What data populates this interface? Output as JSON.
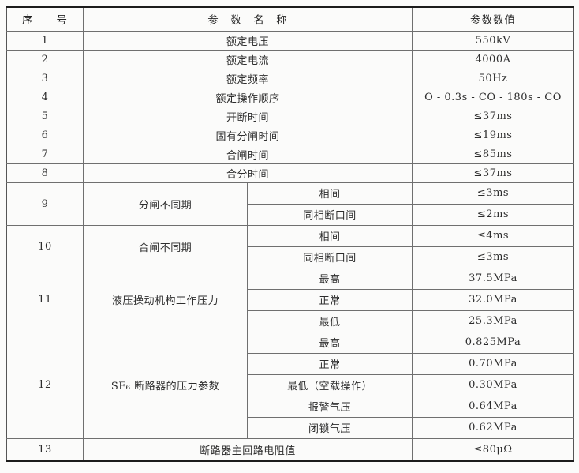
{
  "table": {
    "headers": {
      "no": "序　　号",
      "name": "参　数　名　称",
      "value": "参数数值"
    },
    "rows": [
      {
        "no": "1",
        "name": "额定电压",
        "value": "550kV"
      },
      {
        "no": "2",
        "name": "额定电流",
        "value": "4000A"
      },
      {
        "no": "3",
        "name": "额定频率",
        "value": "50Hz"
      },
      {
        "no": "4",
        "name": "额定操作顺序",
        "value": "O - 0.3s - CO - 180s - CO"
      },
      {
        "no": "5",
        "name": "开断时间",
        "value": "≤37ms"
      },
      {
        "no": "6",
        "name": "固有分闸时间",
        "value": "≤19ms"
      },
      {
        "no": "7",
        "name": "合闸时间",
        "value": "≤85ms"
      },
      {
        "no": "8",
        "name": "合分时间",
        "value": "≤37ms"
      },
      {
        "no": "9",
        "name": "分闸不同期",
        "subrows": [
          {
            "label": "相间",
            "value": "≤3ms"
          },
          {
            "label": "同相断口间",
            "value": "≤2ms"
          }
        ]
      },
      {
        "no": "10",
        "name": "合闸不同期",
        "subrows": [
          {
            "label": "相间",
            "value": "≤4ms"
          },
          {
            "label": "同相断口间",
            "value": "≤3ms"
          }
        ]
      },
      {
        "no": "11",
        "name": "液压操动机构工作压力",
        "subrows": [
          {
            "label": "最高",
            "value": "37.5MPa"
          },
          {
            "label": "正常",
            "value": "32.0MPa"
          },
          {
            "label": "最低",
            "value": "25.3MPa"
          }
        ]
      },
      {
        "no": "12",
        "name": "SF₆ 断路器的压力参数",
        "subrows": [
          {
            "label": "最高",
            "value": "0.825MPa"
          },
          {
            "label": "正常",
            "value": "0.70MPa"
          },
          {
            "label": "最低（空载操作）",
            "value": "0.30MPa"
          },
          {
            "label": "报警气压",
            "value": "0.64MPa"
          },
          {
            "label": "闭锁气压",
            "value": "0.62MPa"
          }
        ]
      },
      {
        "no": "13",
        "name": "断路器主回路电阻值",
        "value": "≤80μΩ"
      }
    ]
  },
  "colors": {
    "page_background": "#fbfbfa",
    "outer_rule": "#1c1c1c",
    "inner_rule": "#6f6f6f",
    "text": "#2d2d2d"
  }
}
